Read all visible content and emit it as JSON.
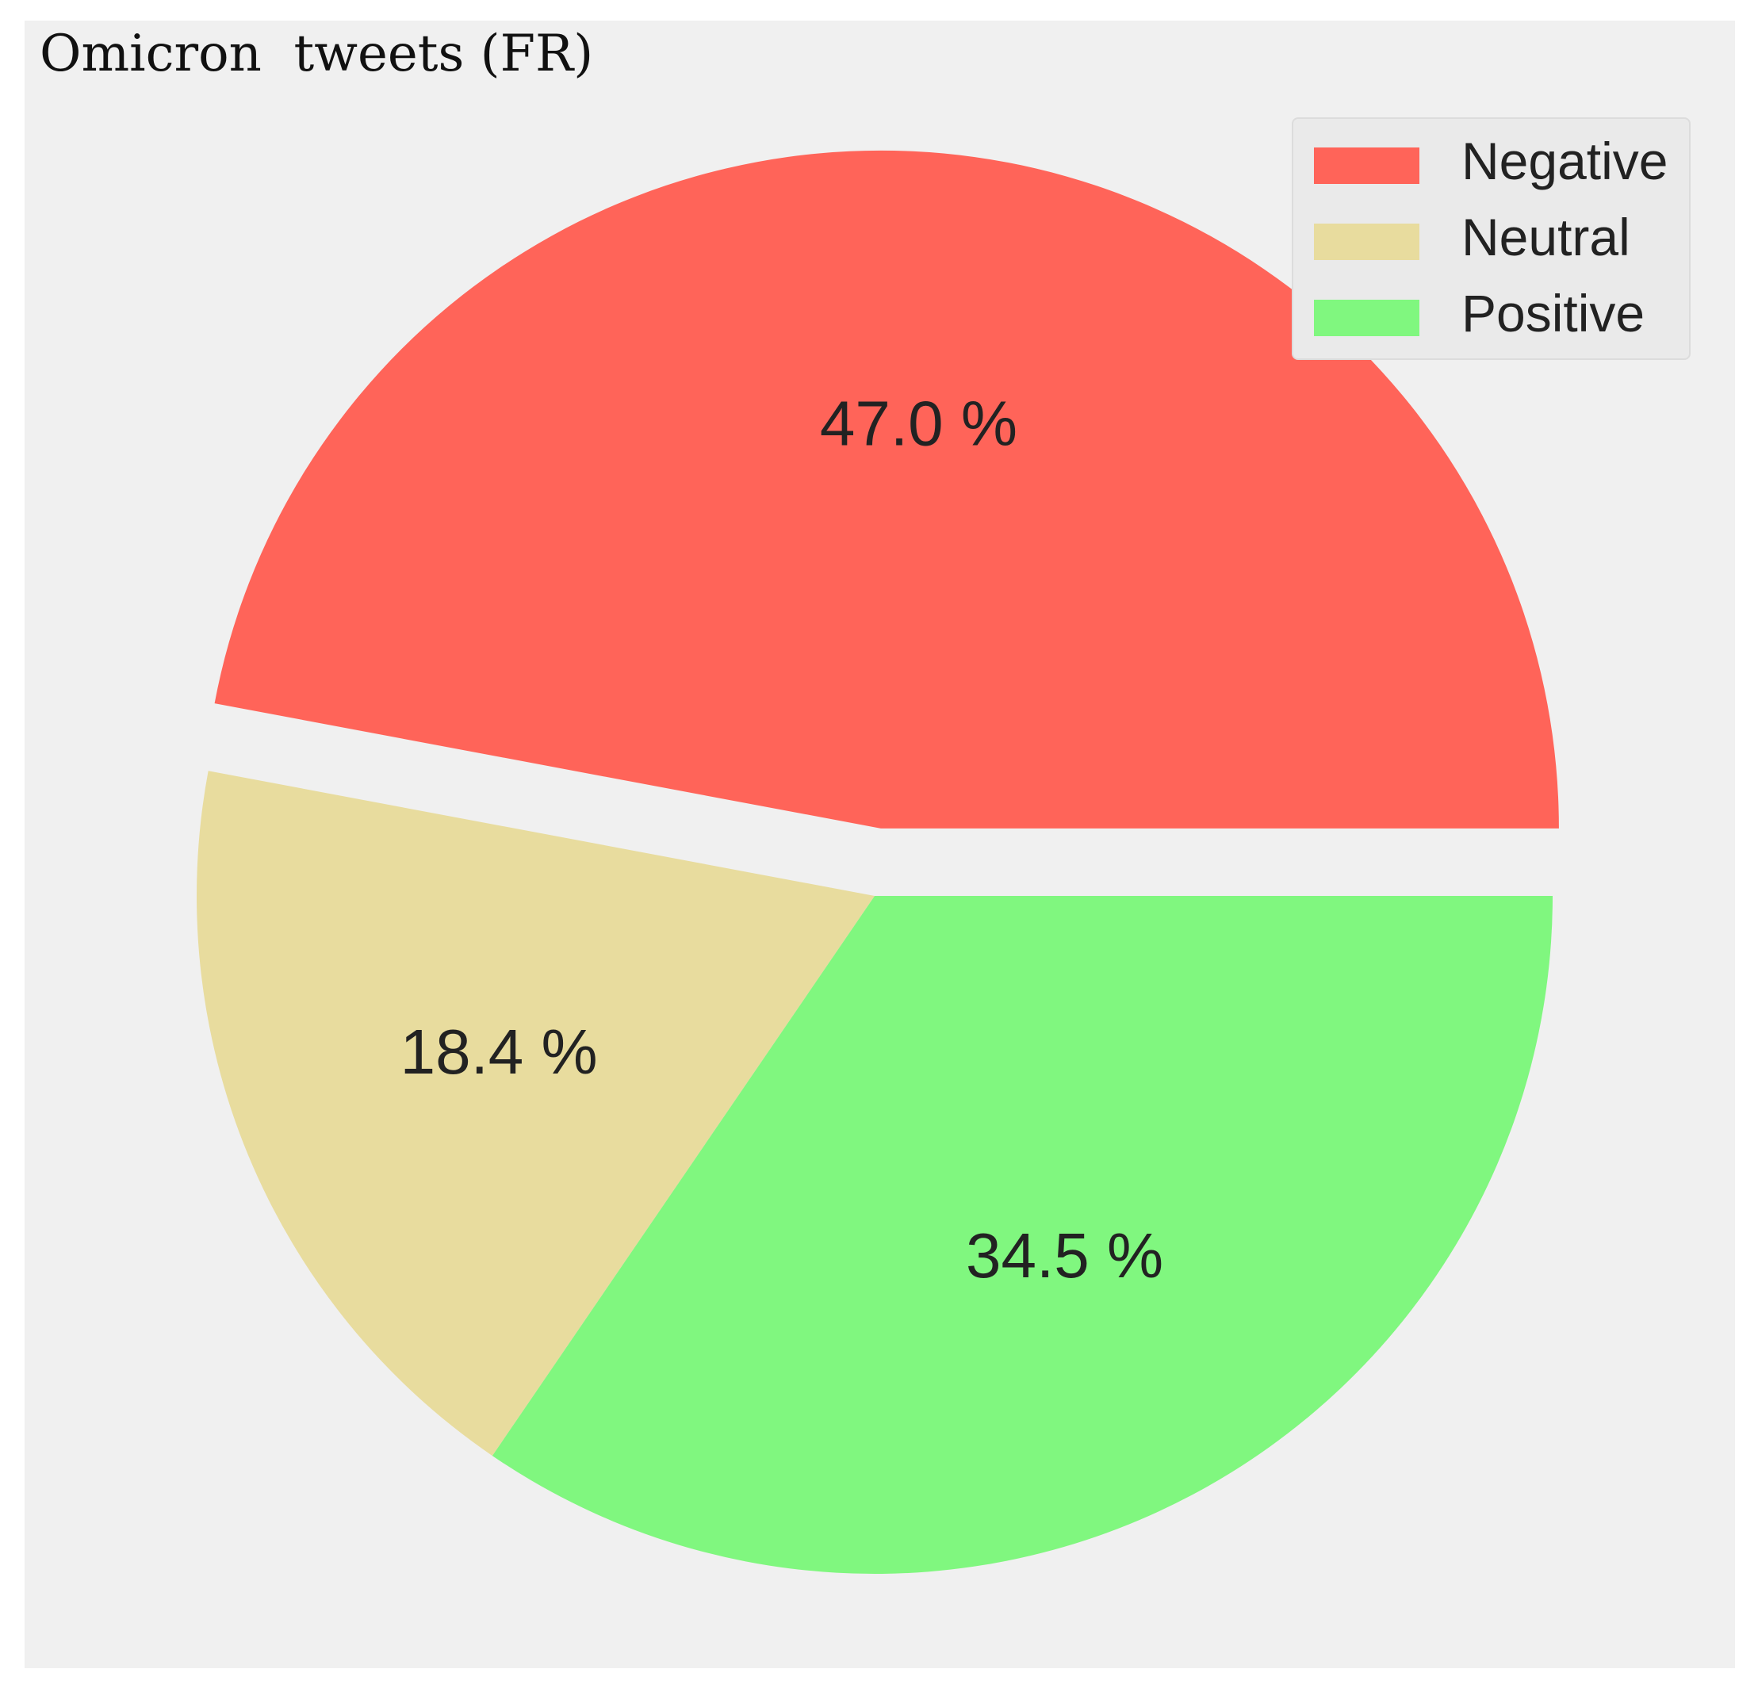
{
  "chart_data": {
    "type": "pie",
    "title": "Omicron  tweets (FR)",
    "slices": [
      {
        "label": "Negative",
        "value": 47.0,
        "display": "47.0 %",
        "color": "#ff6459",
        "exploded": true
      },
      {
        "label": "Neutral",
        "value": 18.4,
        "display": "18.4 %",
        "color": "#e8dc9e",
        "exploded": false
      },
      {
        "label": "Positive",
        "value": 34.5,
        "display": "34.5 %",
        "color": "#80f77f",
        "exploded": false
      }
    ],
    "start_angle_deg": 0,
    "direction": "counterclockwise",
    "legend": {
      "position": "top-right",
      "entries": [
        "Negative",
        "Neutral",
        "Positive"
      ]
    },
    "background": "#f0f0f0"
  }
}
